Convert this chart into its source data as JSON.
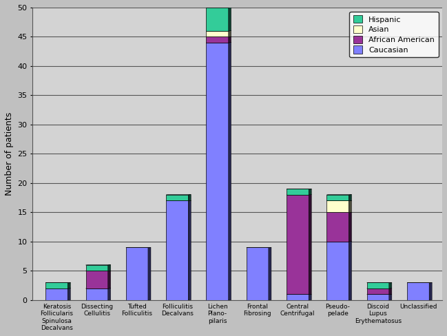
{
  "categories": [
    "Keratosis\nFollicularis\nSpinulosa\nDecalvans",
    "Dissecting\nCellulitis",
    "Tufted\nFolliculitis",
    "Folliculitis\nDecalvans",
    "Lichen\nPlano-\npilaris",
    "Frontal\nFibrosing",
    "Central\nCentrifugal",
    "Pseudo-\npelade",
    "Discoid\nLupus\nErythematosus",
    "Unclassified"
  ],
  "caucasian": [
    2,
    2,
    9,
    17,
    44,
    9,
    1,
    10,
    1,
    3
  ],
  "african_american": [
    0,
    3,
    0,
    0,
    1,
    0,
    17,
    5,
    1,
    0
  ],
  "asian": [
    0,
    0,
    0,
    0,
    1,
    0,
    0,
    2,
    0,
    0
  ],
  "hispanic": [
    1,
    1,
    0,
    1,
    4,
    0,
    1,
    1,
    1,
    0
  ],
  "colors": {
    "caucasian": "#8080FF",
    "african_american": "#993399",
    "asian": "#FFFFCC",
    "hispanic": "#33CC99"
  },
  "ylabel": "Number of patients",
  "ylim": [
    0,
    50
  ],
  "yticks": [
    0,
    5,
    10,
    15,
    20,
    25,
    30,
    35,
    40,
    45,
    50
  ],
  "background_color": "#C0C0C0",
  "plot_background": "#D3D3D3",
  "bar_edge_color": "#000000",
  "bar_width": 0.55,
  "figsize": [
    6.49,
    4.88
  ],
  "dpi": 100
}
